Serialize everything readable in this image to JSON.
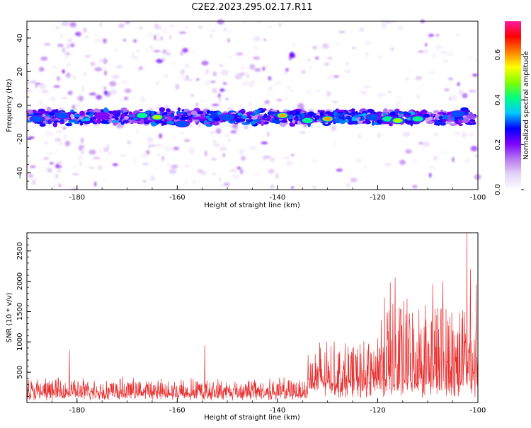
{
  "title": "C2E2.2023.295.02.17.R11",
  "chart_data": [
    {
      "type": "heatmap",
      "xlabel": "Height of straight line (km)",
      "ylabel": "Frequency (Hz)",
      "xlim": [
        -190,
        -100
      ],
      "ylim": [
        -50,
        50
      ],
      "x_ticks": [
        -180,
        -160,
        -140,
        -120,
        -100
      ],
      "y_ticks": [
        -40,
        -20,
        0,
        20,
        40
      ],
      "colorbar": {
        "label": "Normalized spectral amplitude",
        "range": [
          0,
          0.75
        ],
        "ticks": [
          0.0,
          0.2,
          0.4,
          0.6
        ],
        "colors": [
          "#ffffff",
          "#e6d4f7",
          "#b57af0",
          "#7f00ff",
          "#0000ff",
          "#00c8ff",
          "#00ff80",
          "#80ff00",
          "#ffff00",
          "#ff8000",
          "#ff0000",
          "#ff1aa0"
        ]
      },
      "ridge": {
        "frequency_center_hz": -7,
        "half_width_hz": 4,
        "amplitude_range": [
          0.25,
          0.65
        ]
      },
      "peaks": [
        {
          "x": -188,
          "y": -8,
          "value": 0.3
        },
        {
          "x": -183,
          "y": -6,
          "value": 0.3
        },
        {
          "x": -175,
          "y": -6,
          "value": 0.25
        },
        {
          "x": -167,
          "y": -6,
          "value": 0.45
        },
        {
          "x": -164,
          "y": -7,
          "value": 0.5
        },
        {
          "x": -159,
          "y": -11,
          "value": 0.3
        },
        {
          "x": -150,
          "y": -7,
          "value": 0.3
        },
        {
          "x": -139,
          "y": -6,
          "value": 0.65
        },
        {
          "x": -134,
          "y": -9,
          "value": 0.4
        },
        {
          "x": -130,
          "y": -8,
          "value": 0.6
        },
        {
          "x": -121,
          "y": -7,
          "value": 0.35
        },
        {
          "x": -118,
          "y": -8,
          "value": 0.45
        },
        {
          "x": -116,
          "y": -9,
          "value": 0.5
        },
        {
          "x": -112,
          "y": -8,
          "value": 0.45
        },
        {
          "x": -104,
          "y": -5,
          "value": 0.3
        }
      ]
    },
    {
      "type": "line",
      "xlabel": "Height of straight line (km)",
      "ylabel": "SNR (10 * v/v)",
      "xlim": [
        -190,
        -100
      ],
      "ylim": [
        0,
        2800
      ],
      "x_ticks": [
        -180,
        -160,
        -140,
        -120,
        -100
      ],
      "y_ticks": [
        500,
        1000,
        1500,
        2000,
        2500
      ],
      "color": "#e83030",
      "segments": [
        {
          "x_start": -190,
          "x_end": -134,
          "base": 120,
          "amplitude": 280
        },
        {
          "x_start": -134,
          "x_end": -120,
          "base": 250,
          "amplitude": 750
        },
        {
          "x_start": -120,
          "x_end": -100,
          "base": 250,
          "amplitude": 1500
        }
      ],
      "spikes": [
        {
          "x": -181.5,
          "y": 860
        },
        {
          "x": -154.5,
          "y": 940
        },
        {
          "x": -117.5,
          "y": 1980
        },
        {
          "x": -116.5,
          "y": 2060
        },
        {
          "x": -109,
          "y": 1950
        },
        {
          "x": -107,
          "y": 2000
        },
        {
          "x": -102.2,
          "y": 2800
        },
        {
          "x": -101.5,
          "y": 2200
        },
        {
          "x": -100.3,
          "y": 1950
        }
      ]
    }
  ]
}
